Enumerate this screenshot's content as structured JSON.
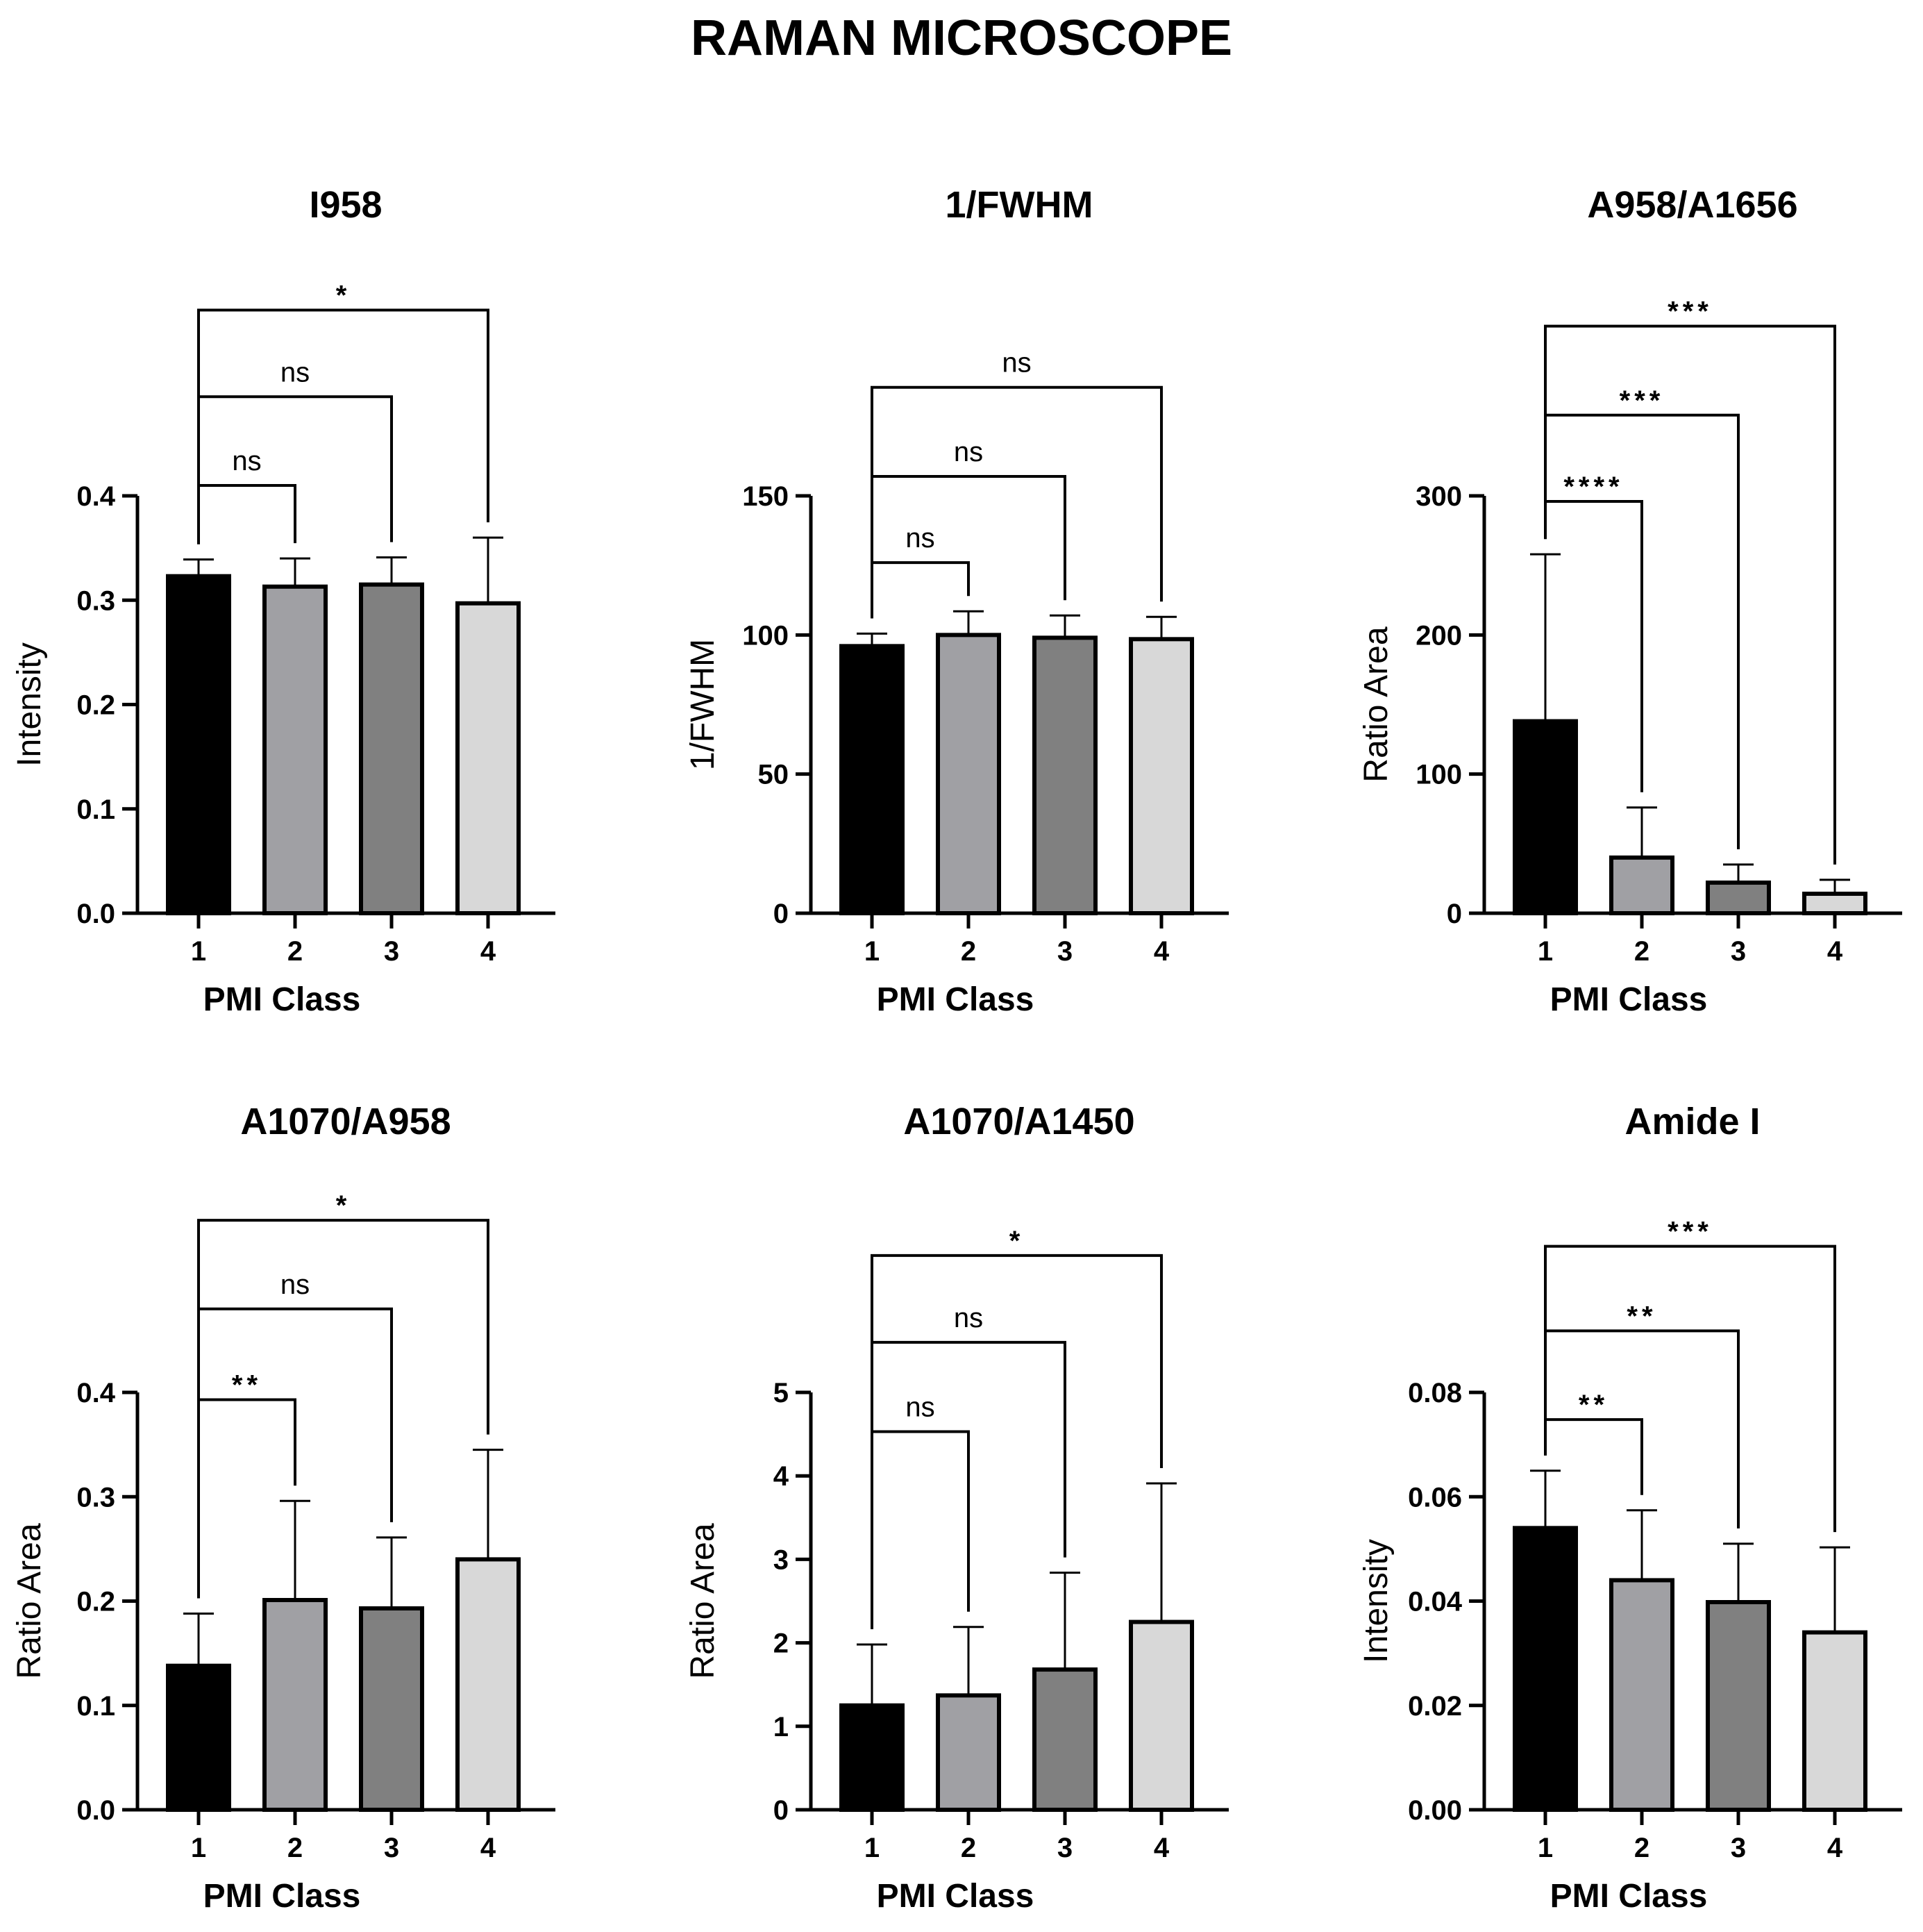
{
  "figure": {
    "title": "RAMAN MICROSCOPE"
  },
  "colors": {
    "class1": "#000000",
    "class2": "#a0a0a4",
    "class3": "#808080",
    "class4": "#d8d8d8",
    "ink": "#000000"
  },
  "chart_data": [
    {
      "type": "bar",
      "title": "I958",
      "xlabel": "PMI Class",
      "ylabel": "Intensity",
      "categories": [
        "1",
        "2",
        "3",
        "4"
      ],
      "values": [
        0.323,
        0.313,
        0.315,
        0.297
      ],
      "errors": [
        0.016,
        0.027,
        0.026,
        0.063
      ],
      "ylim": [
        0,
        0.4
      ],
      "yticks": [
        "0.0",
        "0.1",
        "0.2",
        "0.3",
        "0.4"
      ],
      "comparisons": [
        {
          "from": "1",
          "to": "2",
          "label": "ns",
          "level": 0.41
        },
        {
          "from": "1",
          "to": "3",
          "label": "ns",
          "level": 0.495
        },
        {
          "from": "1",
          "to": "4",
          "label": "*",
          "level": 0.578
        }
      ]
    },
    {
      "type": "bar",
      "title": "1/FWHM",
      "xlabel": "PMI Class",
      "ylabel": "1/FWHM",
      "categories": [
        "1",
        "2",
        "3",
        "4"
      ],
      "values": [
        96,
        100,
        99,
        98.5
      ],
      "errors": [
        4.5,
        8.5,
        8,
        8
      ],
      "ylim": [
        0,
        150
      ],
      "yticks": [
        "0",
        "50",
        "100",
        "150"
      ],
      "comparisons": [
        {
          "from": "1",
          "to": "2",
          "label": "ns",
          "level": 126
        },
        {
          "from": "1",
          "to": "3",
          "label": "ns",
          "level": 157
        },
        {
          "from": "1",
          "to": "4",
          "label": "ns",
          "level": 189
        }
      ]
    },
    {
      "type": "bar",
      "title": "A958/A1656",
      "xlabel": "PMI Class",
      "ylabel": "Ratio Area",
      "categories": [
        "1",
        "2",
        "3",
        "4"
      ],
      "values": [
        138,
        40,
        22,
        14
      ],
      "errors": [
        120,
        36,
        13,
        10
      ],
      "ylim": [
        0,
        300
      ],
      "yticks": [
        "0",
        "100",
        "200",
        "300"
      ],
      "comparisons": [
        {
          "from": "1",
          "to": "2",
          "label": "****",
          "level": 296
        },
        {
          "from": "1",
          "to": "3",
          "label": "***",
          "level": 358
        },
        {
          "from": "1",
          "to": "4",
          "label": "***",
          "level": 422
        }
      ]
    },
    {
      "type": "bar",
      "title": "A1070/A958",
      "xlabel": "PMI Class",
      "ylabel": "Ratio Area",
      "categories": [
        "1",
        "2",
        "3",
        "4"
      ],
      "values": [
        0.138,
        0.201,
        0.193,
        0.24
      ],
      "errors": [
        0.05,
        0.095,
        0.068,
        0.105
      ],
      "ylim": [
        0,
        0.4
      ],
      "yticks": [
        "0.0",
        "0.1",
        "0.2",
        "0.3",
        "0.4"
      ],
      "comparisons": [
        {
          "from": "1",
          "to": "2",
          "label": "**",
          "level": 0.393
        },
        {
          "from": "1",
          "to": "3",
          "label": "ns",
          "level": 0.48
        },
        {
          "from": "1",
          "to": "4",
          "label": "*",
          "level": 0.565
        }
      ]
    },
    {
      "type": "bar",
      "title": "A1070/A1450",
      "xlabel": "PMI Class",
      "ylabel": "Ratio Area",
      "categories": [
        "1",
        "2",
        "3",
        "4"
      ],
      "values": [
        1.25,
        1.37,
        1.68,
        2.25
      ],
      "errors": [
        0.73,
        0.82,
        1.16,
        1.66
      ],
      "ylim": [
        0,
        5
      ],
      "yticks": [
        "0",
        "1",
        "2",
        "3",
        "4",
        "5"
      ],
      "comparisons": [
        {
          "from": "1",
          "to": "2",
          "label": "ns",
          "level": 4.53
        },
        {
          "from": "1",
          "to": "3",
          "label": "ns",
          "level": 5.6
        },
        {
          "from": "1",
          "to": "4",
          "label": "*",
          "level": 6.64
        }
      ]
    },
    {
      "type": "bar",
      "title": "Amide I",
      "xlabel": "PMI Class",
      "ylabel": "Intensity",
      "categories": [
        "1",
        "2",
        "3",
        "4"
      ],
      "values": [
        0.054,
        0.044,
        0.0398,
        0.034
      ],
      "errors": [
        0.011,
        0.0134,
        0.0112,
        0.0163
      ],
      "ylim": [
        0,
        0.08
      ],
      "yticks": [
        "0.00",
        "0.02",
        "0.04",
        "0.06",
        "0.08"
      ],
      "comparisons": [
        {
          "from": "1",
          "to": "2",
          "label": "**",
          "level": 0.0748
        },
        {
          "from": "1",
          "to": "3",
          "label": "**",
          "level": 0.0918
        },
        {
          "from": "1",
          "to": "4",
          "label": "***",
          "level": 0.108
        }
      ]
    }
  ]
}
